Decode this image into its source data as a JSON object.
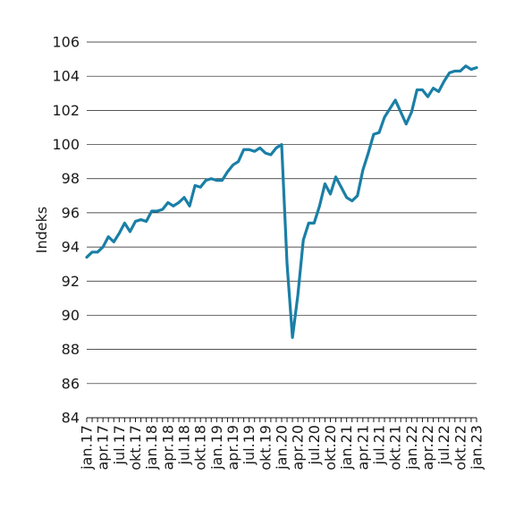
{
  "chart_data": {
    "type": "line",
    "title": "",
    "xlabel": "",
    "ylabel": "Indeks",
    "ylim": [
      84,
      106
    ],
    "yticks": [
      84,
      86,
      88,
      90,
      92,
      94,
      96,
      98,
      100,
      102,
      104,
      106
    ],
    "grid": "horizontal",
    "color": "#1a7fa6",
    "x_tick_labels": [
      {
        "index": 0,
        "label": "jan.17"
      },
      {
        "index": 3,
        "label": "apr.17"
      },
      {
        "index": 6,
        "label": "jul.17"
      },
      {
        "index": 9,
        "label": "okt.17"
      },
      {
        "index": 12,
        "label": "jan.18"
      },
      {
        "index": 15,
        "label": "apr.18"
      },
      {
        "index": 18,
        "label": "jul.18"
      },
      {
        "index": 21,
        "label": "okt.18"
      },
      {
        "index": 24,
        "label": "jan.19"
      },
      {
        "index": 27,
        "label": "apr.19"
      },
      {
        "index": 30,
        "label": "jul.19"
      },
      {
        "index": 33,
        "label": "okt.19"
      },
      {
        "index": 36,
        "label": "jan.20"
      },
      {
        "index": 39,
        "label": "apr.20"
      },
      {
        "index": 42,
        "label": "jul.20"
      },
      {
        "index": 45,
        "label": "okt.20"
      },
      {
        "index": 48,
        "label": "jan.21"
      },
      {
        "index": 51,
        "label": "apr.21"
      },
      {
        "index": 54,
        "label": "jul.21"
      },
      {
        "index": 57,
        "label": "okt.21"
      },
      {
        "index": 60,
        "label": "jan.22"
      },
      {
        "index": 63,
        "label": "apr.22"
      },
      {
        "index": 66,
        "label": "jul.22"
      },
      {
        "index": 69,
        "label": "okt.22"
      },
      {
        "index": 72,
        "label": "jan.23"
      }
    ],
    "series": [
      {
        "values": [
          93.4,
          93.7,
          93.7,
          94.0,
          94.6,
          94.3,
          94.8,
          95.4,
          94.9,
          95.5,
          95.6,
          95.5,
          96.1,
          96.1,
          96.2,
          96.6,
          96.4,
          96.6,
          96.9,
          96.4,
          97.6,
          97.5,
          97.9,
          98.0,
          97.9,
          97.9,
          98.4,
          98.8,
          99.0,
          99.7,
          99.7,
          99.6,
          99.8,
          99.5,
          99.4,
          99.8,
          100.0,
          93.0,
          88.7,
          91.2,
          94.4,
          95.4,
          95.4,
          96.4,
          97.7,
          97.1,
          98.1,
          97.5,
          96.9,
          96.7,
          97.0,
          98.5,
          99.5,
          100.6,
          100.7,
          101.6,
          102.1,
          102.6,
          101.9,
          101.2,
          101.9,
          103.2,
          103.2,
          102.8,
          103.3,
          103.1,
          103.7,
          104.2,
          104.3,
          104.3,
          104.6,
          104.4,
          104.5
        ]
      }
    ]
  }
}
